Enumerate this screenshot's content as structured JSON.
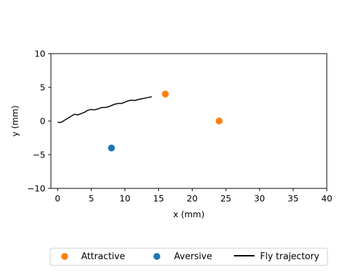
{
  "chart_data": {
    "type": "scatter",
    "title": "",
    "xlabel": "x (mm)",
    "ylabel": "y (mm)",
    "xlim": [
      -1,
      40
    ],
    "ylim": [
      -10,
      10
    ],
    "xticks": [
      0,
      5,
      10,
      15,
      20,
      25,
      30,
      35,
      40
    ],
    "yticks": [
      -10,
      -5,
      0,
      5,
      10
    ],
    "grid": false,
    "legend_position": "bottom",
    "series": [
      {
        "name": "Attractive",
        "kind": "scatter",
        "color": "#ff7f0e",
        "points": [
          [
            16,
            4
          ],
          [
            24,
            0
          ]
        ]
      },
      {
        "name": "Aversive",
        "kind": "scatter",
        "color": "#1f77b4",
        "points": [
          [
            8,
            -4
          ]
        ]
      },
      {
        "name": "Fly trajectory",
        "kind": "line",
        "color": "#000000",
        "points": [
          [
            0,
            -0.2
          ],
          [
            0.5,
            -0.2
          ],
          [
            1,
            0.1
          ],
          [
            1.5,
            0.4
          ],
          [
            2,
            0.7
          ],
          [
            2.5,
            1.0
          ],
          [
            3,
            0.9
          ],
          [
            3.5,
            1.1
          ],
          [
            4,
            1.3
          ],
          [
            4.5,
            1.6
          ],
          [
            5,
            1.7
          ],
          [
            5.5,
            1.65
          ],
          [
            6,
            1.8
          ],
          [
            6.5,
            2.0
          ],
          [
            7,
            2.0
          ],
          [
            7.5,
            2.1
          ],
          [
            8,
            2.3
          ],
          [
            8.5,
            2.5
          ],
          [
            9,
            2.6
          ],
          [
            9.5,
            2.6
          ],
          [
            10,
            2.8
          ],
          [
            10.5,
            3.0
          ],
          [
            11,
            3.1
          ],
          [
            11.5,
            3.05
          ],
          [
            12,
            3.2
          ],
          [
            12.5,
            3.3
          ],
          [
            13,
            3.4
          ],
          [
            13.5,
            3.5
          ],
          [
            14,
            3.6
          ]
        ]
      }
    ]
  }
}
